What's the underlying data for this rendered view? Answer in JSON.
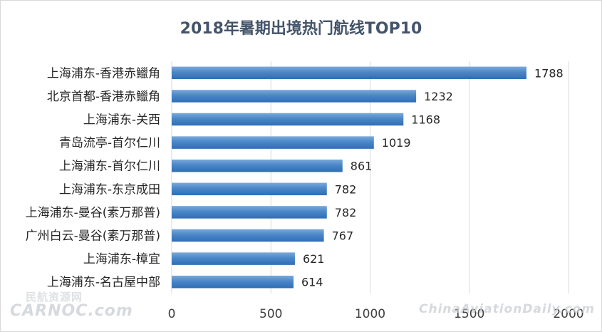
{
  "chart_data": {
    "type": "bar",
    "orientation": "horizontal",
    "title": "2018年暑期出境热门航线TOP10",
    "categories": [
      "上海浦东-香港赤鱲角",
      "北京首都-香港赤鱲角",
      "上海浦东-关西",
      "青岛流亭-首尔仁川",
      "上海浦东-首尔仁川",
      "上海浦东-东京成田",
      "上海浦东-曼谷(素万那普)",
      "广州白云-曼谷(素万那普)",
      "上海浦东-樟宜",
      "上海浦东-名古屋中部"
    ],
    "values": [
      1788,
      1232,
      1168,
      1019,
      861,
      782,
      782,
      767,
      621,
      614
    ],
    "xlim": [
      0,
      2000
    ],
    "xticks": [
      "0",
      "500",
      "1000",
      "1500",
      "2000"
    ],
    "xlabel": "",
    "ylabel": "",
    "grid": "vertical",
    "legend": "none",
    "data_labels": true,
    "bar_color": "#4a86c8",
    "bar_color_light": "#7aa9d9",
    "bar_color_dark": "#2f6eb5",
    "gridline_color": "#d9d9d9",
    "title_color": "#44546a"
  },
  "watermarks": {
    "left_cn": "民航资源网",
    "left_en": "CARNOC.com",
    "right": "ChinaAviationDaily.com"
  }
}
